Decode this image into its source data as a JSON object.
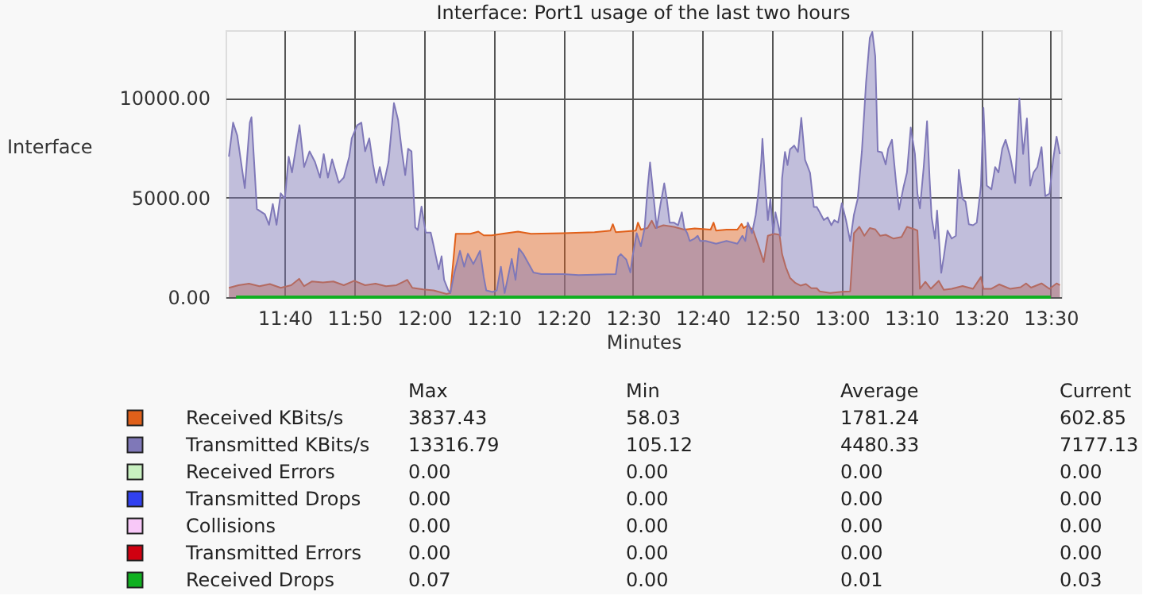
{
  "chart_data": {
    "type": "area",
    "title": "Interface: Port1 usage of the last two hours",
    "xlabel": "Minutes",
    "ylabel": "Interface",
    "xlim": [
      11.525,
      13.525
    ],
    "ylim": [
      0,
      13400
    ],
    "xticks": [
      {
        "value": 11.6667,
        "label": "11:40"
      },
      {
        "value": 11.8333,
        "label": "11:50"
      },
      {
        "value": 12,
        "label": "12:00"
      },
      {
        "value": 12.1667,
        "label": "12:10"
      },
      {
        "value": 12.3333,
        "label": "12:20"
      },
      {
        "value": 12.5,
        "label": "12:30"
      },
      {
        "value": 12.6667,
        "label": "12:40"
      },
      {
        "value": 12.8333,
        "label": "12:50"
      },
      {
        "value": 13,
        "label": "13:00"
      },
      {
        "value": 13.1667,
        "label": "13:10"
      },
      {
        "value": 13.3333,
        "label": "13:20"
      },
      {
        "value": 13.5,
        "label": "13:30"
      }
    ],
    "yticks": [
      {
        "value": 0,
        "label": "0.00"
      },
      {
        "value": 5000,
        "label": "5000.00"
      },
      {
        "value": 10000,
        "label": "10000.00"
      }
    ],
    "grid": true,
    "legend": "bottom",
    "series": [
      {
        "name": "Received KBits/s",
        "color": "#e0601a",
        "x": [
          11.533,
          11.556,
          11.581,
          11.606,
          11.631,
          11.657,
          11.682,
          11.701,
          11.713,
          11.732,
          11.758,
          11.783,
          11.808,
          11.833,
          11.859,
          11.884,
          11.909,
          11.934,
          11.96,
          11.972,
          11.998,
          12.023,
          12.054,
          12.063,
          12.076,
          12.111,
          12.13,
          12.143,
          12.162,
          12.187,
          12.225,
          12.256,
          12.333,
          12.408,
          12.446,
          12.452,
          12.459,
          12.507,
          12.512,
          12.519,
          12.535,
          12.545,
          12.554,
          12.573,
          12.598,
          12.623,
          12.648,
          12.686,
          12.693,
          12.699,
          12.724,
          12.75,
          12.76,
          12.765,
          12.775,
          12.788,
          12.803,
          12.813,
          12.823,
          12.838,
          12.851,
          12.857,
          12.866,
          12.876,
          12.889,
          12.901,
          12.914,
          12.927,
          12.94,
          12.947,
          12.972,
          13.0,
          13.02,
          13.029,
          13.042,
          13.054,
          13.067,
          13.08,
          13.092,
          13.105,
          13.124,
          13.143,
          13.156,
          13.175,
          13.181,
          13.187,
          13.2,
          13.213,
          13.232,
          13.244,
          13.263,
          13.289,
          13.314,
          13.333,
          13.339,
          13.358,
          13.377,
          13.403,
          13.428,
          13.441,
          13.453,
          13.478,
          13.497,
          13.514,
          13.522
        ],
        "values": [
          470,
          600,
          680,
          550,
          660,
          470,
          600,
          920,
          550,
          790,
          740,
          790,
          600,
          820,
          600,
          680,
          550,
          600,
          870,
          470,
          390,
          340,
          160,
          210,
          3180,
          3180,
          3290,
          3100,
          3100,
          3180,
          3290,
          3180,
          3210,
          3260,
          3340,
          3660,
          3260,
          3340,
          3740,
          3390,
          3470,
          3840,
          3470,
          3610,
          3530,
          3390,
          3450,
          3390,
          3740,
          3340,
          3390,
          3390,
          3680,
          3470,
          3610,
          3340,
          2420,
          1760,
          3080,
          3180,
          3130,
          2160,
          1500,
          970,
          710,
          580,
          660,
          450,
          450,
          290,
          210,
          270,
          290,
          3210,
          3530,
          3080,
          3470,
          3400,
          3080,
          3130,
          2940,
          3020,
          3530,
          3400,
          3340,
          420,
          770,
          420,
          820,
          370,
          420,
          560,
          420,
          1010,
          420,
          420,
          640,
          420,
          500,
          690,
          480,
          690,
          420,
          690,
          600
        ]
      },
      {
        "name": "Transmitted KBits/s",
        "color": "#7f78b8",
        "x": [
          11.533,
          11.543,
          11.553,
          11.571,
          11.583,
          11.587,
          11.6,
          11.619,
          11.629,
          11.638,
          11.647,
          11.657,
          11.667,
          11.676,
          11.684,
          11.702,
          11.713,
          11.726,
          11.739,
          11.751,
          11.76,
          11.77,
          11.78,
          11.796,
          11.808,
          11.821,
          11.827,
          11.84,
          11.85,
          11.859,
          11.869,
          11.878,
          11.886,
          11.894,
          11.903,
          11.915,
          11.928,
          11.938,
          11.947,
          11.955,
          11.962,
          11.97,
          11.979,
          11.985,
          11.994,
          12.004,
          12.016,
          12.023,
          12.035,
          12.042,
          12.048,
          12.058,
          12.063,
          12.073,
          12.086,
          12.096,
          12.105,
          12.118,
          12.134,
          12.143,
          12.149,
          12.164,
          12.174,
          12.184,
          12.193,
          12.21,
          12.219,
          12.227,
          12.237,
          12.262,
          12.281,
          12.333,
          12.37,
          12.408,
          12.459,
          12.465,
          12.471,
          12.484,
          12.494,
          12.499,
          12.509,
          12.519,
          12.528,
          12.535,
          12.541,
          12.55,
          12.557,
          12.566,
          12.575,
          12.581,
          12.588,
          12.598,
          12.608,
          12.617,
          12.623,
          12.63,
          12.636,
          12.648,
          12.655,
          12.661,
          12.674,
          12.699,
          12.724,
          12.75,
          12.762,
          12.769,
          12.775,
          12.785,
          12.794,
          12.8,
          12.807,
          12.81,
          12.815,
          12.823,
          12.829,
          12.836,
          12.841,
          12.848,
          12.853,
          12.857,
          12.864,
          12.87,
          12.876,
          12.886,
          12.895,
          12.903,
          12.912,
          12.917,
          12.924,
          12.933,
          12.94,
          12.947,
          12.957,
          12.966,
          12.975,
          12.982,
          12.991,
          13.0,
          13.01,
          13.02,
          13.029,
          13.038,
          13.048,
          13.058,
          13.067,
          13.073,
          13.08,
          13.086,
          13.096,
          13.105,
          13.111,
          13.12,
          13.13,
          13.137,
          13.147,
          13.156,
          13.165,
          13.175,
          13.181,
          13.187,
          13.196,
          13.204,
          13.21,
          13.215,
          13.223,
          13.228,
          13.238,
          13.244,
          13.253,
          13.263,
          13.273,
          13.28,
          13.289,
          13.296,
          13.304,
          13.314,
          13.323,
          13.333,
          13.339,
          13.347,
          13.358,
          13.367,
          13.375,
          13.384,
          13.392,
          13.403,
          13.415,
          13.425,
          13.434,
          13.443,
          13.451,
          13.459,
          13.468,
          13.478,
          13.487,
          13.497,
          13.506,
          13.514,
          13.522
        ],
        "values": [
          7050,
          8760,
          8110,
          5470,
          8760,
          9030,
          4420,
          4160,
          3630,
          4680,
          3630,
          5210,
          4950,
          7050,
          6260,
          8630,
          6530,
          7320,
          6790,
          6000,
          7180,
          6000,
          6920,
          5740,
          6000,
          7050,
          7970,
          8630,
          8760,
          7320,
          7970,
          6660,
          5740,
          6530,
          5610,
          6790,
          9740,
          8890,
          7320,
          6130,
          7450,
          7320,
          3500,
          3370,
          4550,
          3240,
          3240,
          2580,
          1390,
          2050,
          870,
          340,
          210,
          1260,
          2320,
          1530,
          2180,
          1660,
          2320,
          1000,
          340,
          260,
          340,
          1530,
          210,
          1920,
          870,
          2450,
          2180,
          1240,
          1160,
          1160,
          1110,
          1130,
          1160,
          2030,
          2160,
          1890,
          1240,
          2030,
          3210,
          2550,
          3470,
          5450,
          6760,
          4920,
          3470,
          4660,
          5710,
          4920,
          3740,
          3740,
          3610,
          4260,
          3470,
          3210,
          2820,
          2950,
          3080,
          2820,
          2820,
          2680,
          2820,
          2680,
          3080,
          2820,
          3740,
          3210,
          4130,
          5180,
          6760,
          7950,
          6240,
          3870,
          4920,
          3210,
          4260,
          3610,
          3080,
          5970,
          7290,
          6630,
          7420,
          7610,
          7290,
          9000,
          6890,
          6630,
          6240,
          4530,
          4530,
          4270,
          3870,
          4010,
          3610,
          3870,
          3740,
          4720,
          3870,
          2810,
          4140,
          4930,
          7320,
          10770,
          13020,
          13317,
          12100,
          7320,
          7270,
          6660,
          7450,
          7900,
          5730,
          4400,
          5460,
          6260,
          8510,
          7190,
          5200,
          4460,
          6530,
          8830,
          5990,
          4010,
          2940,
          4350,
          1220,
          2020,
          3340,
          2940,
          3080,
          6390,
          4930,
          4800,
          3660,
          3610,
          3740,
          5600,
          9500,
          5600,
          5410,
          6530,
          6260,
          7450,
          7900,
          7060,
          5730,
          9970,
          7190,
          8970,
          5600,
          6260,
          6530,
          7530,
          5070,
          5200,
          6920,
          8060,
          7180
        ]
      },
      {
        "name": "Received Errors",
        "color": "#c8f0c0",
        "type": "line"
      },
      {
        "name": "Transmitted Drops",
        "color": "#3040f0",
        "type": "line"
      },
      {
        "name": "Collisions",
        "color": "#f8c8f8",
        "type": "line"
      },
      {
        "name": "Transmitted Errors",
        "color": "#d00010",
        "type": "line"
      },
      {
        "name": "Received Drops",
        "color": "#10b020",
        "type": "line",
        "x": [
          11.55,
          13.5
        ],
        "values": [
          0,
          0
        ]
      }
    ],
    "annotations": [
      "Max",
      "Min",
      "Average",
      "Current",
      "3837.43",
      "58.03",
      "1781.24",
      "602.85",
      "13316.79",
      "105.12",
      "4480.33",
      "7177.13",
      "0.00",
      "0.00",
      "0.00",
      "0.00",
      "0.00",
      "0.00",
      "0.00",
      "0.00",
      "0.00",
      "0.00",
      "0.00",
      "0.00",
      "0.00",
      "0.00",
      "0.00",
      "0.00",
      "0.07",
      "0.00",
      "0.01",
      "0.03"
    ]
  }
}
